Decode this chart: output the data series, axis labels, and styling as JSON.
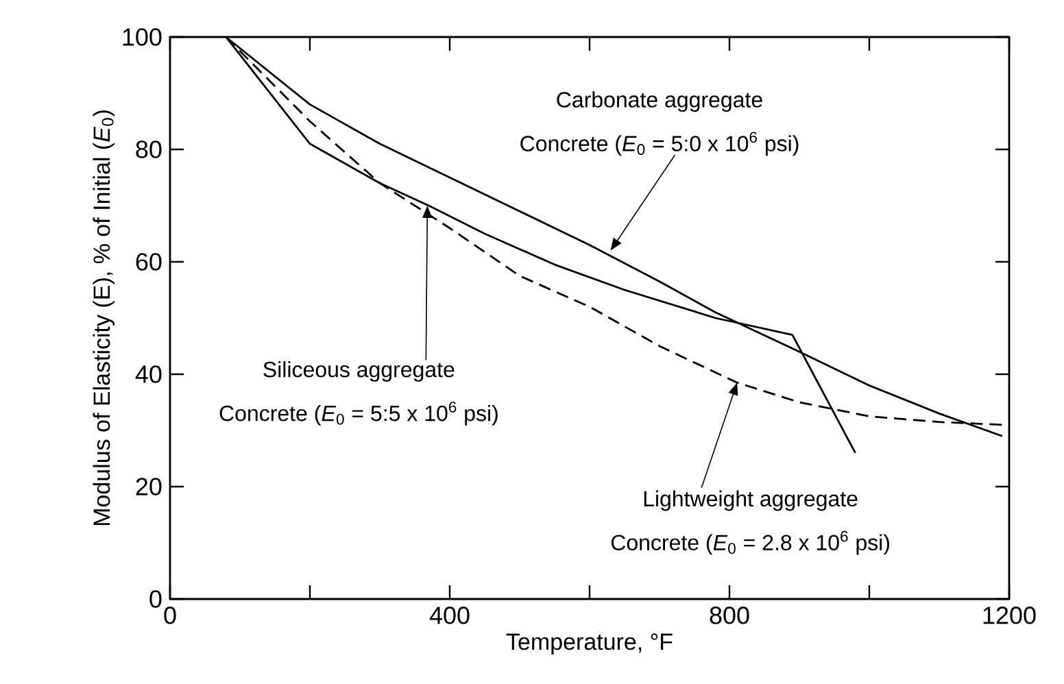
{
  "chart_data": {
    "type": "line",
    "xlabel": "Temperature, °F",
    "ylabel": "Modulus of Elasticity (E), % of Initial (*E*$_{0}$)",
    "xlim": [
      0,
      1200
    ],
    "ylim": [
      0,
      100
    ],
    "xticks": [
      0,
      {
        "value": 200,
        "label": null
      },
      400,
      {
        "value": 600,
        "label": null
      },
      800,
      {
        "value": 1000,
        "label": null
      },
      1200
    ],
    "yticks": [
      0,
      20,
      40,
      60,
      80,
      100
    ],
    "grid": false,
    "series": [
      {
        "color": "#000000",
        "line_style": "solid",
        "x": [
          80,
          200,
          300,
          400,
          500,
          600,
          700,
          780,
          900,
          1000,
          1100,
          1190
        ],
        "values": [
          100,
          88,
          81,
          75,
          69,
          63,
          56.5,
          51,
          44,
          38,
          33,
          29
        ]
      },
      {
        "color": "#000000",
        "line_style": "solid",
        "x": [
          80,
          200,
          300,
          370,
          450,
          550,
          650,
          780,
          890,
          980
        ],
        "values": [
          100,
          81,
          74,
          70,
          65,
          59.5,
          55,
          50,
          47,
          26
        ]
      },
      {
        "color": "#000000",
        "line_style": "dashed",
        "x": [
          80,
          200,
          300,
          400,
          500,
          600,
          700,
          811,
          900,
          1000,
          1100,
          1190
        ],
        "values": [
          100,
          85,
          74,
          66,
          57.5,
          52,
          45,
          38.5,
          35,
          32.5,
          31.5,
          31
        ]
      }
    ],
    "annotations": [
      "Carbonate aggregate",
      {
        "text": "Concrete (*E*$_{0}$ = 5:0 x 10$^{6}$ psi)",
        "x": 630,
        "y": 62
      },
      {
        "text": "Siliceous aggregate",
        "x": 368,
        "y": 70
      },
      "Concrete (*E*$_{0}$ = 5:5 x 10$^{6}$ psi)",
      {
        "text": "Lightweight aggregate",
        "x": 811,
        "y": 38.5
      },
      "Concrete (*E*$_{0}$ = 2.8 x 10$^{6}$ psi)"
    ]
  }
}
